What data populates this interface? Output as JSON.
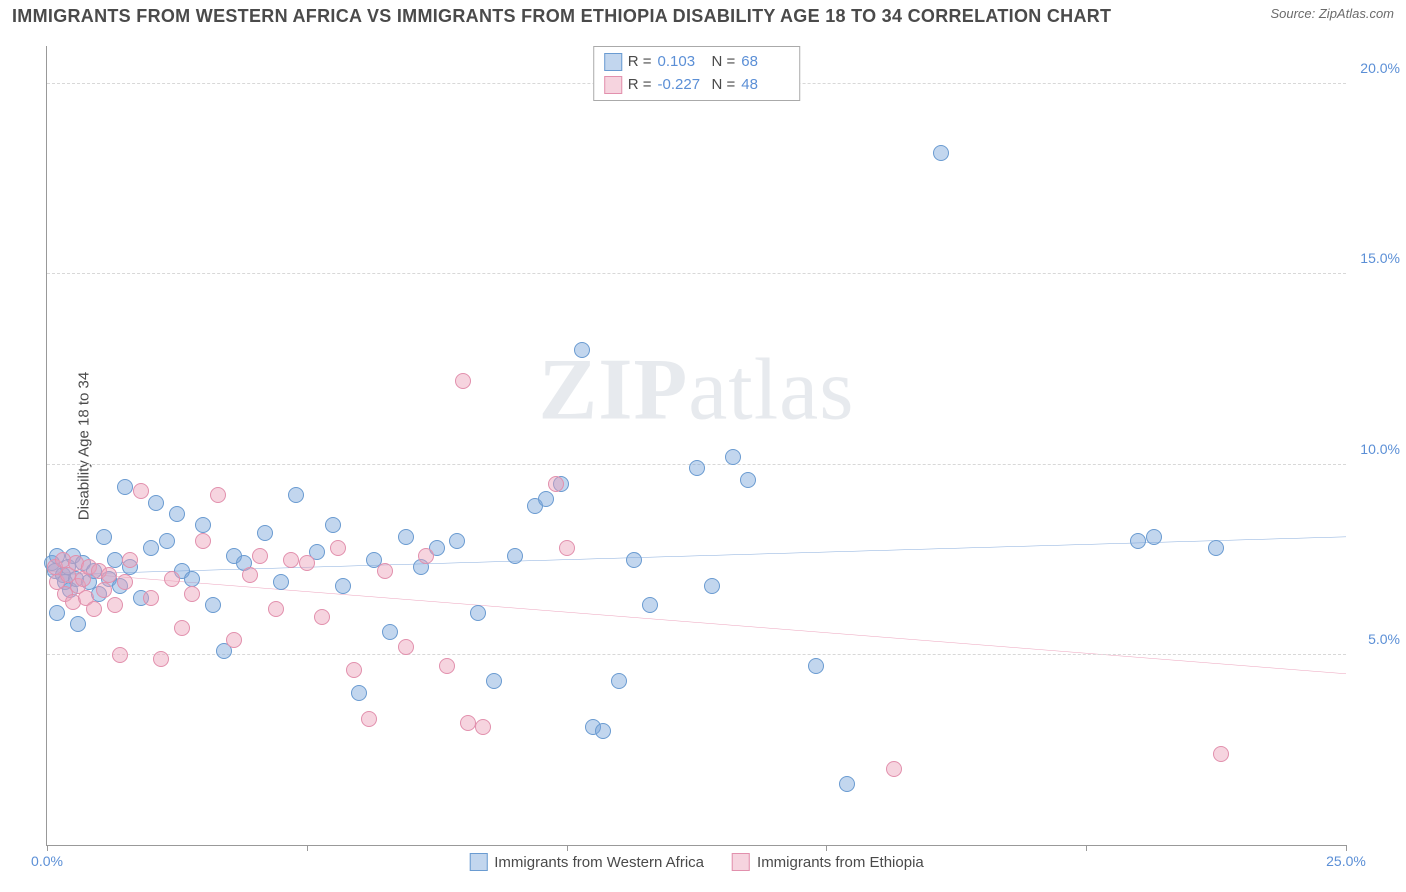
{
  "title": "IMMIGRANTS FROM WESTERN AFRICA VS IMMIGRANTS FROM ETHIOPIA DISABILITY AGE 18 TO 34 CORRELATION CHART",
  "source": "Source: ZipAtlas.com",
  "y_axis_label": "Disability Age 18 to 34",
  "watermark_bold": "ZIP",
  "watermark_rest": "atlas",
  "chart": {
    "type": "scatter",
    "background_color": "#ffffff",
    "grid_color": "#d8d8d8",
    "axis_color": "#999999",
    "xlim": [
      0,
      25
    ],
    "ylim": [
      0,
      21
    ],
    "x_ticks": [
      0,
      5,
      10,
      15,
      20,
      25
    ],
    "x_tick_labels": [
      "0.0%",
      "",
      "",
      "",
      "",
      "25.0%"
    ],
    "y_ticks": [
      5,
      10,
      15,
      20
    ],
    "y_tick_labels": [
      "5.0%",
      "10.0%",
      "15.0%",
      "20.0%"
    ],
    "point_radius": 8,
    "point_opacity": 0.55,
    "trend_line_width": 2.5,
    "title_fontsize": 18,
    "label_fontsize": 15,
    "tick_fontsize": 14,
    "tick_label_color": "#5b8fd6"
  },
  "series": [
    {
      "name": "Immigrants from Western Africa",
      "color_fill": "rgba(120,165,218,0.45)",
      "color_stroke": "#6a9bd1",
      "trend_color": "#3d78c7",
      "R": "0.103",
      "N": "68",
      "trend": {
        "x1": 0,
        "y1": 7.1,
        "x2": 25,
        "y2": 8.1
      },
      "points": [
        [
          0.1,
          7.4
        ],
        [
          0.15,
          7.2
        ],
        [
          0.2,
          6.1
        ],
        [
          0.2,
          7.6
        ],
        [
          0.3,
          7.1
        ],
        [
          0.35,
          6.9
        ],
        [
          0.4,
          7.3
        ],
        [
          0.45,
          6.7
        ],
        [
          0.5,
          7.6
        ],
        [
          0.55,
          7.0
        ],
        [
          0.6,
          5.8
        ],
        [
          0.7,
          7.4
        ],
        [
          0.8,
          6.9
        ],
        [
          0.9,
          7.2
        ],
        [
          1.0,
          6.6
        ],
        [
          1.1,
          8.1
        ],
        [
          1.2,
          7.0
        ],
        [
          1.3,
          7.5
        ],
        [
          1.4,
          6.8
        ],
        [
          1.5,
          9.4
        ],
        [
          1.6,
          7.3
        ],
        [
          1.8,
          6.5
        ],
        [
          2.0,
          7.8
        ],
        [
          2.1,
          9.0
        ],
        [
          2.3,
          8.0
        ],
        [
          2.5,
          8.7
        ],
        [
          2.6,
          7.2
        ],
        [
          2.8,
          7.0
        ],
        [
          3.0,
          8.4
        ],
        [
          3.2,
          6.3
        ],
        [
          3.4,
          5.1
        ],
        [
          3.6,
          7.6
        ],
        [
          3.8,
          7.4
        ],
        [
          4.2,
          8.2
        ],
        [
          4.5,
          6.9
        ],
        [
          4.8,
          9.2
        ],
        [
          5.2,
          7.7
        ],
        [
          5.5,
          8.4
        ],
        [
          5.7,
          6.8
        ],
        [
          6.0,
          4.0
        ],
        [
          6.3,
          7.5
        ],
        [
          6.6,
          5.6
        ],
        [
          6.9,
          8.1
        ],
        [
          7.2,
          7.3
        ],
        [
          7.5,
          7.8
        ],
        [
          7.9,
          8.0
        ],
        [
          8.3,
          6.1
        ],
        [
          8.6,
          4.3
        ],
        [
          9.0,
          7.6
        ],
        [
          9.4,
          8.9
        ],
        [
          9.6,
          9.1
        ],
        [
          9.9,
          9.5
        ],
        [
          10.3,
          13.0
        ],
        [
          10.5,
          3.1
        ],
        [
          10.7,
          3.0
        ],
        [
          11.0,
          4.3
        ],
        [
          11.3,
          7.5
        ],
        [
          11.6,
          6.3
        ],
        [
          12.5,
          9.9
        ],
        [
          12.8,
          6.8
        ],
        [
          13.2,
          10.2
        ],
        [
          13.5,
          9.6
        ],
        [
          14.8,
          4.7
        ],
        [
          15.4,
          1.6
        ],
        [
          17.2,
          18.2
        ],
        [
          21.0,
          8.0
        ],
        [
          21.3,
          8.1
        ],
        [
          22.5,
          7.8
        ]
      ]
    },
    {
      "name": "Immigrants from Ethiopia",
      "color_fill": "rgba(234,160,185,0.45)",
      "color_stroke": "#e290ad",
      "trend_color": "#e06a93",
      "R": "-0.227",
      "N": "48",
      "trend": {
        "x1": 0,
        "y1": 7.2,
        "x2": 25,
        "y2": 4.5
      },
      "points": [
        [
          0.15,
          7.3
        ],
        [
          0.2,
          6.9
        ],
        [
          0.3,
          7.5
        ],
        [
          0.35,
          6.6
        ],
        [
          0.4,
          7.1
        ],
        [
          0.5,
          6.4
        ],
        [
          0.55,
          7.4
        ],
        [
          0.6,
          6.8
        ],
        [
          0.7,
          7.0
        ],
        [
          0.75,
          6.5
        ],
        [
          0.8,
          7.3
        ],
        [
          0.9,
          6.2
        ],
        [
          1.0,
          7.2
        ],
        [
          1.1,
          6.7
        ],
        [
          1.2,
          7.1
        ],
        [
          1.3,
          6.3
        ],
        [
          1.4,
          5.0
        ],
        [
          1.5,
          6.9
        ],
        [
          1.6,
          7.5
        ],
        [
          1.8,
          9.3
        ],
        [
          2.0,
          6.5
        ],
        [
          2.2,
          4.9
        ],
        [
          2.4,
          7.0
        ],
        [
          2.6,
          5.7
        ],
        [
          2.8,
          6.6
        ],
        [
          3.0,
          8.0
        ],
        [
          3.3,
          9.2
        ],
        [
          3.6,
          5.4
        ],
        [
          3.9,
          7.1
        ],
        [
          4.1,
          7.6
        ],
        [
          4.4,
          6.2
        ],
        [
          4.7,
          7.5
        ],
        [
          5.0,
          7.4
        ],
        [
          5.3,
          6.0
        ],
        [
          5.6,
          7.8
        ],
        [
          5.9,
          4.6
        ],
        [
          6.2,
          3.3
        ],
        [
          6.5,
          7.2
        ],
        [
          6.9,
          5.2
        ],
        [
          7.3,
          7.6
        ],
        [
          7.7,
          4.7
        ],
        [
          8.0,
          12.2
        ],
        [
          8.1,
          3.2
        ],
        [
          8.4,
          3.1
        ],
        [
          9.8,
          9.5
        ],
        [
          10.0,
          7.8
        ],
        [
          16.3,
          2.0
        ],
        [
          22.6,
          2.4
        ]
      ]
    }
  ],
  "legend_top": {
    "R_label": "R =",
    "N_label": "N ="
  },
  "legend_bottom_label_0": "Immigrants from Western Africa",
  "legend_bottom_label_1": "Immigrants from Ethiopia"
}
